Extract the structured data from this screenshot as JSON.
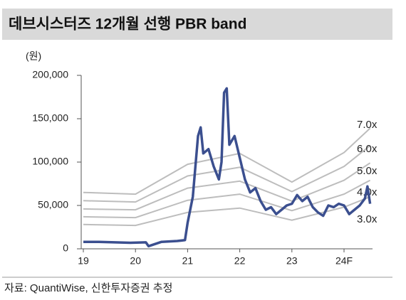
{
  "chart_data": {
    "type": "line",
    "title": "데브시스터즈 12개월 선행 PBR band",
    "y_unit_label": "(원)",
    "source": "자료: QuantiWise, 신한투자증권 추정",
    "xlim": [
      19,
      24.55
    ],
    "xticks": [
      19,
      20,
      21,
      22,
      23,
      {
        "value": 24,
        "label": "24F"
      }
    ],
    "ylim": [
      0,
      200000
    ],
    "yticks": [
      0,
      {
        "value": 50000,
        "label": "50,000"
      },
      {
        "value": 100000,
        "label": "100,000"
      },
      {
        "value": 150000,
        "label": "150,000"
      },
      {
        "value": 200000,
        "label": "200,000"
      }
    ],
    "band_x": [
      19,
      20,
      21,
      22,
      23,
      24,
      24.5
    ],
    "bands": [
      {
        "name": "7.0x",
        "color": "#bdbdbd",
        "values": [
          65000,
          63000,
          97500,
          110000,
          77000,
          111000,
          139000
        ]
      },
      {
        "name": "6.0x",
        "color": "#bdbdbd",
        "values": [
          55500,
          54000,
          84000,
          94000,
          66000,
          95000,
          119000
        ]
      },
      {
        "name": "5.0x",
        "color": "#bdbdbd",
        "values": [
          46000,
          45000,
          70000,
          78000,
          55000,
          79000,
          99000
        ]
      },
      {
        "name": "4.0x",
        "color": "#bdbdbd",
        "values": [
          37000,
          36000,
          56000,
          63000,
          44000,
          63000,
          79000
        ]
      },
      {
        "name": "3.0x",
        "color": "#bdbdbd",
        "values": [
          28000,
          27000,
          42000,
          47000,
          33000,
          48000,
          60000
        ]
      }
    ],
    "price": {
      "color": "#3b4f8f",
      "x": [
        19.0,
        19.3,
        19.6,
        19.9,
        20.2,
        20.25,
        20.5,
        20.8,
        20.95,
        21.0,
        21.1,
        21.2,
        21.25,
        21.3,
        21.4,
        21.5,
        21.6,
        21.65,
        21.7,
        21.75,
        21.8,
        21.9,
        22.0,
        22.1,
        22.2,
        22.3,
        22.4,
        22.5,
        22.6,
        22.7,
        22.8,
        22.9,
        23.0,
        23.1,
        23.2,
        23.3,
        23.4,
        23.5,
        23.6,
        23.7,
        23.8,
        23.9,
        24.0,
        24.1,
        24.2,
        24.3,
        24.4,
        24.45,
        24.5
      ],
      "values": [
        8000,
        8000,
        7500,
        7000,
        7500,
        3000,
        8000,
        9000,
        10000,
        30000,
        60000,
        130000,
        140000,
        110000,
        115000,
        95000,
        80000,
        100000,
        180000,
        185000,
        120000,
        130000,
        105000,
        80000,
        65000,
        70000,
        55000,
        45000,
        48000,
        40000,
        45000,
        50000,
        52000,
        62000,
        55000,
        60000,
        48000,
        42000,
        38000,
        50000,
        48000,
        52000,
        50000,
        40000,
        45000,
        50000,
        58000,
        72000,
        52000
      ]
    }
  }
}
